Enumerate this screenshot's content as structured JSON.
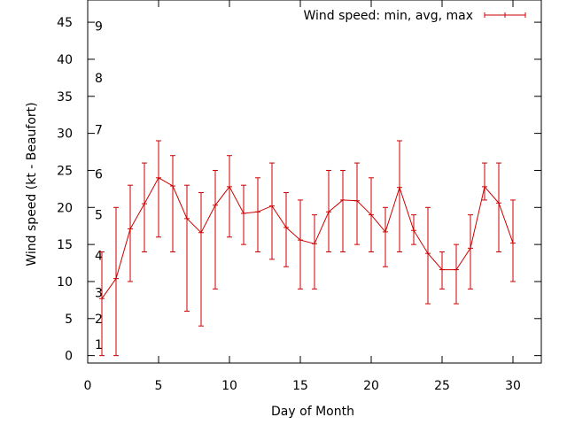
{
  "chart_data": {
    "type": "line",
    "title": "",
    "xlabel": "Day of Month",
    "ylabel": "Wind speed (kt - Beaufort)",
    "xlim": [
      0,
      32
    ],
    "ylim": [
      -1,
      48
    ],
    "xticks": [
      "0",
      "5",
      "10",
      "15",
      "20",
      "25",
      "30"
    ],
    "yticks": [
      "0",
      "5",
      "10",
      "15",
      "20",
      "25",
      "30",
      "35",
      "40",
      "45"
    ],
    "beaufort_labels": [
      {
        "label": "1",
        "y": 1.5
      },
      {
        "label": "2",
        "y": 5
      },
      {
        "label": "3",
        "y": 8.5
      },
      {
        "label": "4",
        "y": 13.5
      },
      {
        "label": "5",
        "y": 19
      },
      {
        "label": "6",
        "y": 24.5
      },
      {
        "label": "7",
        "y": 30.5
      },
      {
        "label": "8",
        "y": 37.5
      },
      {
        "label": "9",
        "y": 44.5
      }
    ],
    "legend": {
      "label": "Wind speed: min, avg, max",
      "placement": "top-right"
    },
    "grid": false,
    "color": "#cc0000",
    "series": [
      {
        "name": "Wind speed: min, avg, max",
        "x": [
          1,
          2,
          3,
          4,
          5,
          6,
          7,
          8,
          9,
          10,
          11,
          12,
          13,
          14,
          15,
          16,
          17,
          18,
          19,
          20,
          21,
          22,
          23,
          24,
          25,
          26,
          27,
          28,
          29,
          30
        ],
        "avg": [
          7.7,
          10.4,
          17.1,
          20.5,
          24,
          22.9,
          18.5,
          16.6,
          20.3,
          22.8,
          19.2,
          19.4,
          20.2,
          17.3,
          15.6,
          15.1,
          19.4,
          21,
          20.9,
          19,
          16.7,
          22.7,
          16.9,
          13.8,
          11.6,
          11.6,
          14.5,
          22.8,
          20.6,
          15.2
        ],
        "min": [
          0,
          0,
          10,
          14,
          16,
          14,
          6,
          4,
          9,
          16,
          15,
          14,
          13,
          12,
          9,
          9,
          14,
          14,
          15,
          14,
          12,
          14,
          15,
          7,
          9,
          7,
          9,
          21,
          14,
          10
        ],
        "max": [
          14,
          20,
          23,
          26,
          29,
          27,
          23,
          22,
          25,
          27,
          23,
          24,
          26,
          22,
          21,
          19,
          25,
          25,
          26,
          24,
          20,
          29,
          19,
          20,
          14,
          15,
          19,
          26,
          26,
          21
        ]
      }
    ]
  }
}
